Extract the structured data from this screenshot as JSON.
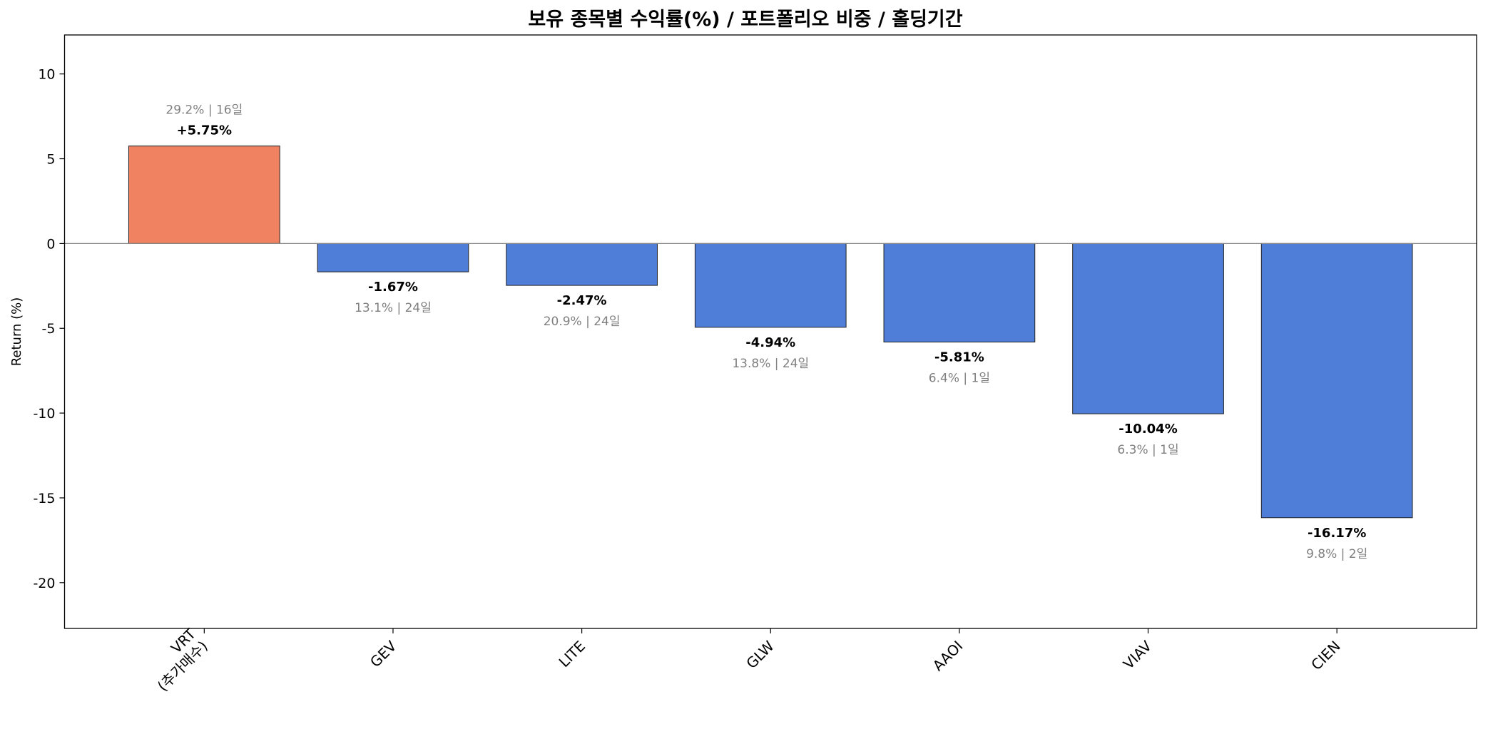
{
  "chart_data": {
    "type": "bar",
    "title": "보유 종목별 수익률(%) / 포트폴리오 비중 / 홀딩기간",
    "xlabel": "",
    "ylabel": "Return (%)",
    "ylim": [
      -22.7,
      12.3
    ],
    "yticks": [
      -20,
      -15,
      -10,
      -5,
      0,
      5,
      10
    ],
    "ytick_labels": [
      "-20",
      "-15",
      "-10",
      "-5",
      "0",
      "5",
      "10"
    ],
    "grid": false,
    "categories": [
      "VRT\n(추가매수)",
      "GEV",
      "LITE",
      "GLW",
      "AAOI",
      "VIAV",
      "CIEN"
    ],
    "values": [
      5.75,
      -1.67,
      -2.47,
      -4.94,
      -5.81,
      -10.04,
      -16.17
    ],
    "value_labels": [
      "+5.75%",
      "-1.67%",
      "-2.47%",
      "-4.94%",
      "-5.81%",
      "-10.04%",
      "-16.17%"
    ],
    "info_labels": [
      "29.2% | 16일",
      "13.1% | 24일",
      "20.9% | 24일",
      "13.8% | 24일",
      "6.4% | 1일",
      "6.3% | 1일",
      "9.8% | 2일"
    ],
    "colors": {
      "positive": "#F08261",
      "negative": "#4F7ED8",
      "zero_line": "#888888",
      "info_text": "#808080"
    }
  }
}
